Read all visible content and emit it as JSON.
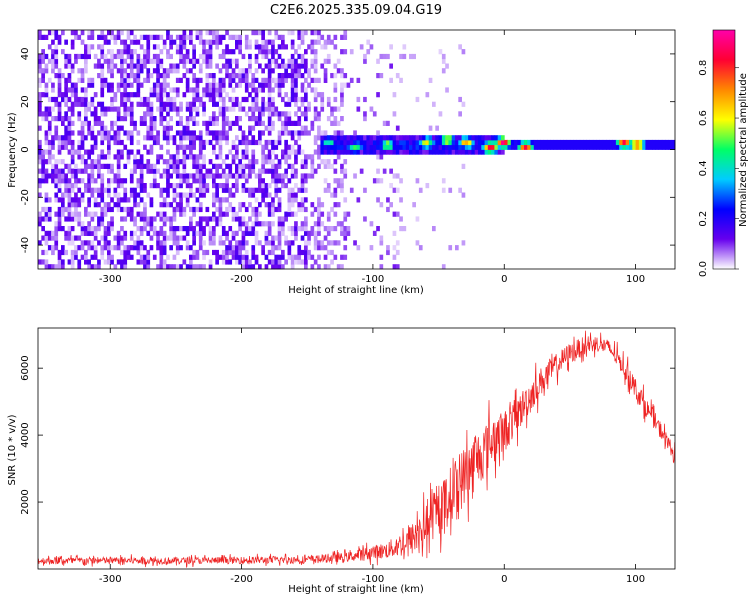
{
  "title": "C2E6.2025.335.09.04.G19",
  "colors": {
    "snr_line": "#ee2222",
    "colormap": [
      "#ffffff",
      "#6600ee",
      "#0000ff",
      "#00ccff",
      "#00ff66",
      "#ffff00",
      "#ff8800",
      "#ff0033",
      "#ff00aa"
    ]
  },
  "chart_data": [
    {
      "type": "heatmap",
      "name": "spectrogram",
      "xlabel": "Height of straight line (km)",
      "ylabel": "Frequency (Hz)",
      "xlim": [
        -355,
        130
      ],
      "ylim": [
        -50,
        50
      ],
      "xticks": [
        -300,
        -200,
        -100,
        0,
        100
      ],
      "yticks": [
        -40,
        -20,
        0,
        20,
        40
      ],
      "colorbar": {
        "label": "Normalized spectral amplitude",
        "range": [
          0,
          0.95
        ],
        "ticks": [
          0.0,
          0.2,
          0.4,
          0.6,
          0.8
        ]
      },
      "description_of_data": {
        "noise_region_x": [
          -355,
          -80
        ],
        "carrier_frequency_hz": 0,
        "carrier_onset_x": -140,
        "carrier_peaks": [
          {
            "x": -135,
            "f": 2,
            "amp": 0.45
          },
          {
            "x": -115,
            "f": 0,
            "amp": 0.5
          },
          {
            "x": -90,
            "f": 1,
            "amp": 0.55
          },
          {
            "x": -60,
            "f": 2,
            "amp": 0.6
          },
          {
            "x": -45,
            "f": 3,
            "amp": 0.65
          },
          {
            "x": -30,
            "f": 2,
            "amp": 0.7
          },
          {
            "x": -12,
            "f": 0,
            "amp": 0.85
          },
          {
            "x": -2,
            "f": 2,
            "amp": 0.9
          },
          {
            "x": 15,
            "f": 0,
            "amp": 0.85
          },
          {
            "x": 90,
            "f": 2,
            "amp": 0.85
          },
          {
            "x": 100,
            "f": 1,
            "amp": 0.8
          }
        ]
      }
    },
    {
      "type": "line",
      "name": "snr",
      "xlabel": "Height of straight line (km)",
      "ylabel": "SNR (10 * v/v)",
      "xlim": [
        -355,
        130
      ],
      "ylim": [
        0,
        7200
      ],
      "xticks": [
        -300,
        -200,
        -100,
        0,
        100
      ],
      "yticks": [
        2000,
        4000,
        6000
      ],
      "series": [
        {
          "name": "SNR",
          "x": [
            -355,
            -300,
            -250,
            -200,
            -150,
            -120,
            -100,
            -90,
            -80,
            -70,
            -60,
            -50,
            -40,
            -30,
            -20,
            -10,
            0,
            10,
            20,
            30,
            40,
            50,
            60,
            70,
            80,
            90,
            100,
            110,
            120,
            130
          ],
          "mean": [
            250,
            250,
            250,
            260,
            280,
            350,
            500,
            550,
            700,
            900,
            1300,
            1700,
            2300,
            2800,
            3300,
            3800,
            4100,
            4600,
            5200,
            5700,
            6100,
            6450,
            6650,
            6750,
            6600,
            6100,
            5400,
            4700,
            4100,
            3400
          ],
          "spread": [
            150,
            150,
            150,
            150,
            160,
            200,
            300,
            350,
            500,
            700,
            900,
            1000,
            1200,
            1300,
            1200,
            1100,
            900,
            800,
            700,
            600,
            500,
            450,
            400,
            350,
            350,
            400,
            450,
            400,
            350,
            300
          ]
        }
      ]
    }
  ]
}
